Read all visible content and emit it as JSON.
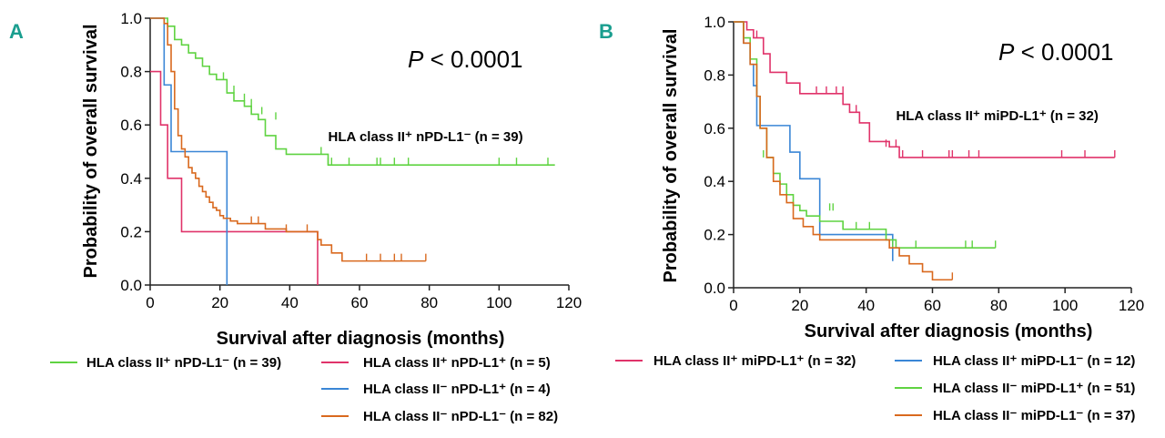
{
  "chart_data": [
    {
      "type": "line",
      "panel": "A",
      "title": "",
      "xlabel": "Survival after diagnosis (months)",
      "ylabel": "Probability of overall survival",
      "xlim": [
        0,
        120
      ],
      "ylim": [
        0,
        1
      ],
      "xticks": [
        "0",
        "20",
        "40",
        "60",
        "80",
        "100",
        "120"
      ],
      "yticks": [
        "0.0",
        "0.2",
        "0.4",
        "0.6",
        "0.8",
        "1.0"
      ],
      "xtick_values": [
        0,
        20,
        40,
        60,
        80,
        100,
        120
      ],
      "ytick_values": [
        0,
        0.2,
        0.4,
        0.6,
        0.8,
        1.0
      ],
      "pvalue": {
        "p": "P",
        "rest": " < 0.0001"
      },
      "annotation": {
        "text": "HLA class II⁺ nPD-L1⁻ (n = 39)",
        "x": 51,
        "y": 0.54
      },
      "series": [
        {
          "name": "HLA class II⁺ nPD-L1⁻ (n = 39)",
          "color": "#5fd341",
          "x": [
            0,
            5,
            5,
            7,
            9,
            11,
            13,
            15,
            17,
            19,
            22,
            24,
            27,
            29,
            31,
            33,
            36,
            39,
            44,
            49,
            51,
            116
          ],
          "y": [
            1.0,
            1.0,
            0.97,
            0.92,
            0.9,
            0.87,
            0.85,
            0.82,
            0.79,
            0.77,
            0.72,
            0.69,
            0.67,
            0.64,
            0.62,
            0.56,
            0.51,
            0.49,
            0.49,
            0.49,
            0.45,
            0.45
          ],
          "censor_x": [
            21,
            24,
            27,
            29,
            32,
            36,
            49,
            51,
            52,
            57,
            65,
            66,
            70,
            74,
            100,
            105,
            114
          ],
          "censor_y": [
            0.77,
            0.72,
            0.69,
            0.67,
            0.64,
            0.62,
            0.49,
            0.45,
            0.45,
            0.45,
            0.45,
            0.45,
            0.45,
            0.45,
            0.45,
            0.45,
            0.45
          ]
        },
        {
          "name": "HLA class II⁺ nPD-L1⁺ (n = 5)",
          "color": "#e0336a",
          "x": [
            0,
            3,
            3,
            5,
            5,
            9,
            9,
            48,
            48
          ],
          "y": [
            0.8,
            0.8,
            0.6,
            0.6,
            0.4,
            0.4,
            0.2,
            0.2,
            0.0
          ],
          "censor_x": [],
          "censor_y": []
        },
        {
          "name": "HLA class II⁻ nPD-L1⁺ (n = 4)",
          "color": "#3a86d6",
          "x": [
            0,
            4,
            4,
            6,
            6,
            22,
            22
          ],
          "y": [
            1.0,
            1.0,
            0.75,
            0.75,
            0.5,
            0.5,
            0.0
          ],
          "censor_x": [],
          "censor_y": []
        },
        {
          "name": "HLA class II⁻ nPD-L1⁻ (n = 82)",
          "color": "#d9691e",
          "x": [
            0,
            4,
            5,
            6,
            7,
            8,
            9,
            10,
            11,
            12,
            13,
            14,
            15,
            16,
            17,
            18,
            19,
            20,
            21,
            23,
            25,
            27,
            31,
            33,
            35,
            39,
            46,
            48,
            49,
            52,
            55,
            79
          ],
          "y": [
            1.0,
            0.98,
            0.9,
            0.8,
            0.66,
            0.56,
            0.51,
            0.48,
            0.44,
            0.42,
            0.4,
            0.37,
            0.35,
            0.33,
            0.31,
            0.29,
            0.28,
            0.26,
            0.25,
            0.24,
            0.23,
            0.23,
            0.23,
            0.21,
            0.21,
            0.2,
            0.2,
            0.17,
            0.15,
            0.12,
            0.09,
            0.09
          ],
          "censor_x": [
            29,
            31,
            39,
            45,
            62,
            66,
            70,
            72,
            79
          ],
          "censor_y": [
            0.23,
            0.23,
            0.2,
            0.2,
            0.09,
            0.09,
            0.09,
            0.09,
            0.09
          ]
        }
      ],
      "legend": [
        {
          "label": "HLA class II⁺ nPD-L1⁻ (n = 39)",
          "color": "#5fd341"
        },
        {
          "label": "HLA class II⁺ nPD-L1⁺ (n = 5)",
          "color": "#e0336a"
        },
        {
          "label": "HLA class II⁻ nPD-L1⁺ (n = 4)",
          "color": "#3a86d6"
        },
        {
          "label": "HLA class II⁻ nPD-L1⁻ (n = 82)",
          "color": "#d9691e"
        }
      ]
    },
    {
      "type": "line",
      "panel": "B",
      "title": "",
      "xlabel": "Survival after diagnosis (months)",
      "ylabel": "Probability of overall survival",
      "xlim": [
        0,
        120
      ],
      "ylim": [
        0,
        1
      ],
      "xticks": [
        "0",
        "20",
        "40",
        "60",
        "80",
        "100",
        "120"
      ],
      "yticks": [
        "0.0",
        "0.2",
        "0.4",
        "0.6",
        "0.8",
        "1.0"
      ],
      "xtick_values": [
        0,
        20,
        40,
        60,
        80,
        100,
        120
      ],
      "ytick_values": [
        0,
        0.2,
        0.4,
        0.6,
        0.8,
        1.0
      ],
      "pvalue": {
        "p": "P",
        "rest": " < 0.0001"
      },
      "annotation": {
        "text": "HLA class II⁺ miPD-L1⁺ (n = 32)",
        "x": 49,
        "y": 0.63
      },
      "series": [
        {
          "name": "HLA class II⁺ miPD-L1⁺ (n = 32)",
          "color": "#e0336a",
          "x": [
            0,
            4,
            6,
            9,
            11,
            16,
            20,
            22,
            30,
            33,
            35,
            38,
            41,
            47,
            50,
            115
          ],
          "y": [
            1.0,
            0.97,
            0.94,
            0.88,
            0.81,
            0.77,
            0.73,
            0.73,
            0.73,
            0.69,
            0.66,
            0.62,
            0.55,
            0.53,
            0.49,
            0.49
          ],
          "censor_x": [
            7,
            16,
            25,
            28,
            31,
            33,
            37,
            46,
            49,
            51,
            57,
            65,
            66,
            71,
            74,
            99,
            106,
            115
          ],
          "censor_y": [
            0.94,
            0.77,
            0.73,
            0.73,
            0.73,
            0.73,
            0.66,
            0.53,
            0.53,
            0.49,
            0.49,
            0.49,
            0.49,
            0.49,
            0.49,
            0.49,
            0.49,
            0.49
          ]
        },
        {
          "name": "HLA class II⁺ miPD-L1⁻ (n = 12)",
          "color": "#3a86d6",
          "x": [
            0,
            3,
            5,
            6,
            7,
            14,
            17,
            20,
            26,
            47,
            48,
            48
          ],
          "y": [
            1.0,
            0.92,
            0.84,
            0.76,
            0.61,
            0.61,
            0.51,
            0.41,
            0.2,
            0.2,
            0.1,
            0.1
          ],
          "censor_x": [],
          "censor_y": []
        },
        {
          "name": "HLA class II⁻ miPD-L1⁺ (n = 51)",
          "color": "#5fd341",
          "x": [
            0,
            3,
            5,
            7,
            8,
            10,
            12,
            14,
            16,
            18,
            20,
            22,
            26,
            33,
            46,
            49,
            79
          ],
          "y": [
            1.0,
            0.94,
            0.86,
            0.72,
            0.6,
            0.49,
            0.43,
            0.39,
            0.35,
            0.31,
            0.29,
            0.27,
            0.25,
            0.22,
            0.18,
            0.15,
            0.15
          ],
          "censor_x": [
            9,
            29,
            30,
            33,
            37,
            41,
            48,
            55,
            70,
            72,
            79
          ],
          "censor_y": [
            0.49,
            0.29,
            0.29,
            0.22,
            0.22,
            0.22,
            0.15,
            0.15,
            0.15,
            0.15,
            0.15
          ]
        },
        {
          "name": "HLA class II⁻ miPD-L1⁻ (n = 37)",
          "color": "#d9691e",
          "x": [
            0,
            3,
            5,
            7,
            8,
            10,
            12,
            14,
            16,
            18,
            21,
            24,
            26,
            36,
            47,
            50,
            53,
            57,
            60,
            66
          ],
          "y": [
            1.0,
            0.92,
            0.84,
            0.72,
            0.6,
            0.49,
            0.4,
            0.35,
            0.32,
            0.26,
            0.23,
            0.2,
            0.18,
            0.18,
            0.15,
            0.12,
            0.09,
            0.06,
            0.03,
            0.03
          ],
          "censor_x": [
            66
          ],
          "censor_y": [
            0.03
          ]
        }
      ],
      "legend": [
        {
          "label": "HLA class II⁺ miPD-L1⁺ (n = 32)",
          "color": "#e0336a"
        },
        {
          "label": "HLA class II⁺ miPD-L1⁻ (n = 12)",
          "color": "#3a86d6"
        },
        {
          "label": "HLA class II⁻ miPD-L1⁺ (n = 51)",
          "color": "#5fd341"
        },
        {
          "label": "HLA class II⁻ miPD-L1⁻ (n = 37)",
          "color": "#d9691e"
        }
      ]
    }
  ],
  "panel_letter_color": "#1a9e8f"
}
